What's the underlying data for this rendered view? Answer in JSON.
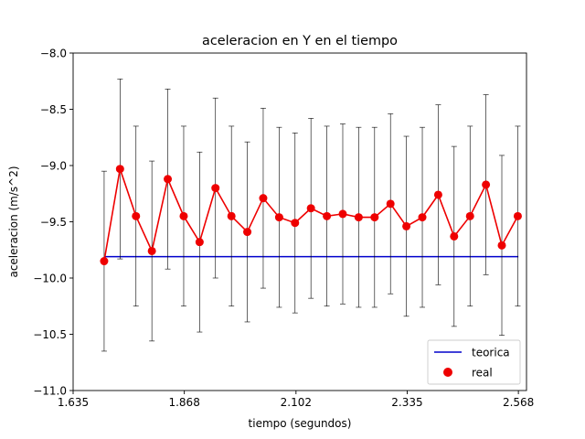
{
  "chart_data": {
    "type": "line",
    "title": "aceleracion en Y en el tiempo",
    "xlabel": "tiempo (segundos)",
    "ylabel": "aceleracion (m/s^2)",
    "xlim": [
      1.635,
      2.585
    ],
    "ylim": [
      -11.0,
      -8.0
    ],
    "xticks": [
      1.635,
      1.868,
      2.102,
      2.335,
      2.568
    ],
    "xtick_labels": [
      "1.635",
      "1.868",
      "2.102",
      "2.335",
      "2.568"
    ],
    "yticks": [
      -8.0,
      -8.5,
      -9.0,
      -9.5,
      -10.0,
      -10.5,
      -11.0
    ],
    "ytick_labels": [
      "−8.0",
      "−8.5",
      "−9.0",
      "−9.5",
      "−10.0",
      "−10.5",
      "−11.0"
    ],
    "grid": false,
    "legend": {
      "position": "lower-right",
      "entries": [
        "teorica",
        "real"
      ]
    },
    "series": [
      {
        "name": "teorica",
        "kind": "line",
        "color": "#0000cc",
        "x": [
          1.7,
          2.568
        ],
        "y": [
          -9.81,
          -9.81
        ]
      },
      {
        "name": "real",
        "kind": "line-markers-errorbars",
        "color": "#ee0000",
        "x": [
          1.7,
          1.7333,
          1.7667,
          1.8,
          1.8333,
          1.8667,
          1.9,
          1.9333,
          1.9667,
          2.0,
          2.0333,
          2.0667,
          2.1,
          2.1333,
          2.1667,
          2.2,
          2.2333,
          2.2667,
          2.3,
          2.3333,
          2.3667,
          2.4,
          2.4333,
          2.4667,
          2.5,
          2.5333,
          2.5667
        ],
        "y": [
          -9.85,
          -9.03,
          -9.45,
          -9.76,
          -9.12,
          -9.45,
          -9.68,
          -9.2,
          -9.45,
          -9.59,
          -9.29,
          -9.46,
          -9.51,
          -9.38,
          -9.45,
          -9.43,
          -9.46,
          -9.46,
          -9.34,
          -9.54,
          -9.46,
          -9.26,
          -9.63,
          -9.45,
          -9.17,
          -9.71,
          -9.45
        ],
        "yerr": [
          0.8,
          0.8,
          0.8,
          0.8,
          0.8,
          0.8,
          0.8,
          0.8,
          0.8,
          0.8,
          0.8,
          0.8,
          0.8,
          0.8,
          0.8,
          0.8,
          0.8,
          0.8,
          0.8,
          0.8,
          0.8,
          0.8,
          0.8,
          0.8,
          0.8,
          0.8,
          0.8
        ]
      }
    ]
  }
}
